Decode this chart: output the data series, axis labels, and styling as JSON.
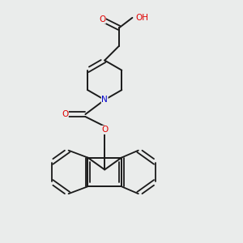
{
  "background_color": "#eaeceb",
  "bond_color": "#1a1a1a",
  "atom_colors": {
    "O": "#e00000",
    "N": "#0000cc",
    "C": "#1a1a1a",
    "H": "#1a1a1a"
  }
}
